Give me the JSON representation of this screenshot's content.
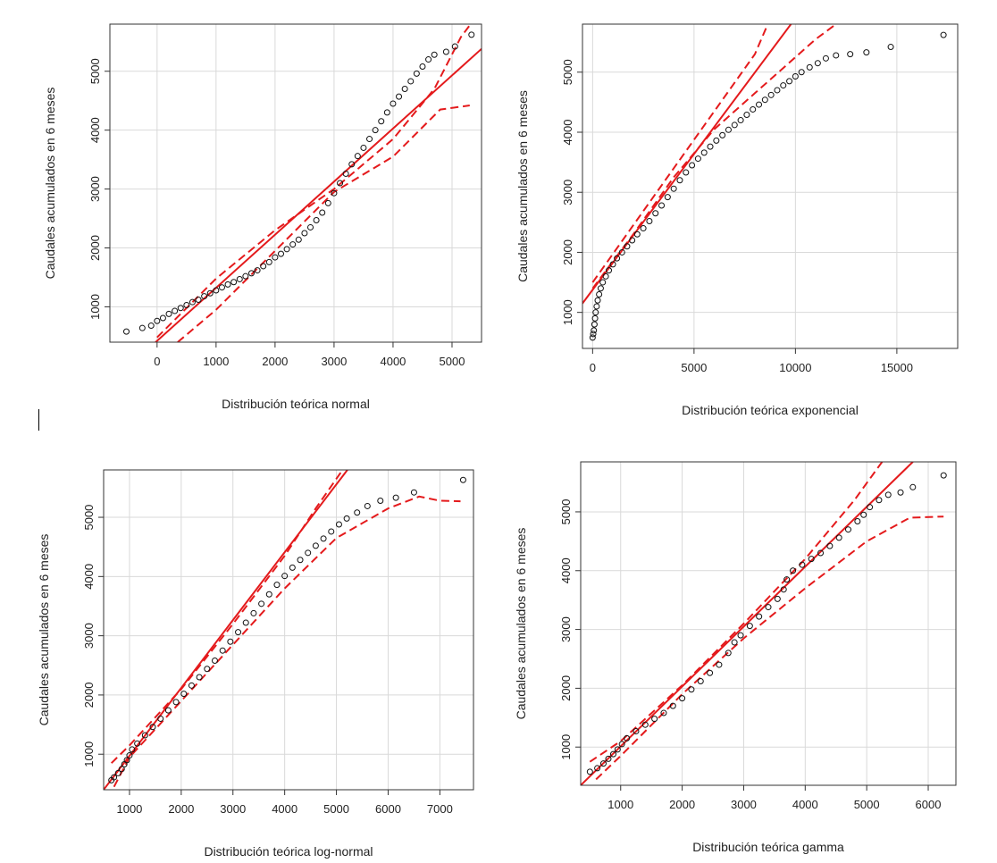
{
  "chart_data": [
    {
      "type": "scatter",
      "title": "",
      "xlabel": "Distribución teórica normal",
      "ylabel": "Caudales acumulados en 6 meses",
      "xlim": [
        -800,
        5500
      ],
      "ylim": [
        400,
        5800
      ],
      "xticks": [
        0,
        1000,
        2000,
        3000,
        4000,
        5000
      ],
      "yticks": [
        1000,
        2000,
        3000,
        4000,
        5000
      ],
      "grid": true,
      "reference_line": [
        [
          -800,
          -300
        ],
        [
          5500,
          5380
        ]
      ],
      "band_upper": [
        [
          0,
          480
        ],
        [
          1000,
          1480
        ],
        [
          2000,
          2300
        ],
        [
          3000,
          3000
        ],
        [
          4000,
          3850
        ],
        [
          4700,
          4700
        ],
        [
          5150,
          5580
        ],
        [
          5300,
          5780
        ]
      ],
      "band_lower": [
        [
          350,
          400
        ],
        [
          1000,
          950
        ],
        [
          2000,
          1950
        ],
        [
          3000,
          2950
        ],
        [
          4000,
          3550
        ],
        [
          4800,
          4350
        ],
        [
          5300,
          4420
        ]
      ],
      "points": [
        [
          -520,
          580
        ],
        [
          -250,
          640
        ],
        [
          -100,
          680
        ],
        [
          0,
          760
        ],
        [
          100,
          810
        ],
        [
          200,
          880
        ],
        [
          300,
          930
        ],
        [
          400,
          980
        ],
        [
          500,
          1030
        ],
        [
          600,
          1080
        ],
        [
          700,
          1120
        ],
        [
          800,
          1180
        ],
        [
          900,
          1230
        ],
        [
          1000,
          1280
        ],
        [
          1100,
          1330
        ],
        [
          1200,
          1380
        ],
        [
          1300,
          1420
        ],
        [
          1400,
          1470
        ],
        [
          1500,
          1520
        ],
        [
          1600,
          1570
        ],
        [
          1700,
          1620
        ],
        [
          1800,
          1690
        ],
        [
          1900,
          1760
        ],
        [
          2000,
          1840
        ],
        [
          2100,
          1900
        ],
        [
          2200,
          1980
        ],
        [
          2300,
          2060
        ],
        [
          2400,
          2140
        ],
        [
          2500,
          2250
        ],
        [
          2600,
          2350
        ],
        [
          2700,
          2470
        ],
        [
          2800,
          2600
        ],
        [
          2900,
          2760
        ],
        [
          3000,
          2930
        ],
        [
          3100,
          3100
        ],
        [
          3200,
          3260
        ],
        [
          3300,
          3420
        ],
        [
          3400,
          3560
        ],
        [
          3500,
          3700
        ],
        [
          3600,
          3850
        ],
        [
          3700,
          4000
        ],
        [
          3800,
          4150
        ],
        [
          3900,
          4300
        ],
        [
          4000,
          4450
        ],
        [
          4100,
          4570
        ],
        [
          4200,
          4700
        ],
        [
          4300,
          4830
        ],
        [
          4400,
          4960
        ],
        [
          4500,
          5080
        ],
        [
          4600,
          5200
        ],
        [
          4700,
          5280
        ],
        [
          4900,
          5330
        ],
        [
          5050,
          5420
        ],
        [
          5330,
          5620
        ]
      ]
    },
    {
      "type": "scatter",
      "title": "",
      "xlabel": "Distribución teórica exponencial",
      "ylabel": "Caudales acumulados en 6 meses",
      "xlim": [
        -500,
        18000
      ],
      "ylim": [
        400,
        5800
      ],
      "xticks": [
        0,
        5000,
        10000,
        15000
      ],
      "yticks": [
        1000,
        2000,
        3000,
        4000,
        5000
      ],
      "grid": true,
      "reference_line": [
        [
          -500,
          1150
        ],
        [
          10000,
          5900
        ]
      ],
      "band_upper": [
        [
          0,
          1500
        ],
        [
          2000,
          2450
        ],
        [
          4000,
          3400
        ],
        [
          6000,
          4350
        ],
        [
          8000,
          5300
        ],
        [
          8700,
          5850
        ]
      ],
      "band_lower": [
        [
          0,
          1400
        ],
        [
          2000,
          2300
        ],
        [
          4000,
          3250
        ],
        [
          6000,
          4050
        ],
        [
          8000,
          4650
        ],
        [
          10000,
          5250
        ],
        [
          11000,
          5550
        ],
        [
          12000,
          5800
        ]
      ],
      "points": [
        [
          0,
          580
        ],
        [
          30,
          640
        ],
        [
          60,
          700
        ],
        [
          90,
          800
        ],
        [
          120,
          900
        ],
        [
          150,
          1000
        ],
        [
          200,
          1100
        ],
        [
          250,
          1200
        ],
        [
          320,
          1300
        ],
        [
          400,
          1400
        ],
        [
          500,
          1500
        ],
        [
          650,
          1600
        ],
        [
          800,
          1700
        ],
        [
          1000,
          1800
        ],
        [
          1200,
          1900
        ],
        [
          1450,
          2000
        ],
        [
          1700,
          2100
        ],
        [
          1950,
          2200
        ],
        [
          2200,
          2300
        ],
        [
          2500,
          2400
        ],
        [
          2800,
          2520
        ],
        [
          3100,
          2650
        ],
        [
          3400,
          2780
        ],
        [
          3700,
          2920
        ],
        [
          4000,
          3060
        ],
        [
          4300,
          3200
        ],
        [
          4600,
          3330
        ],
        [
          4900,
          3450
        ],
        [
          5200,
          3560
        ],
        [
          5500,
          3660
        ],
        [
          5800,
          3760
        ],
        [
          6100,
          3860
        ],
        [
          6400,
          3950
        ],
        [
          6700,
          4040
        ],
        [
          7000,
          4120
        ],
        [
          7300,
          4200
        ],
        [
          7600,
          4290
        ],
        [
          7900,
          4380
        ],
        [
          8200,
          4460
        ],
        [
          8500,
          4540
        ],
        [
          8800,
          4620
        ],
        [
          9100,
          4700
        ],
        [
          9400,
          4780
        ],
        [
          9700,
          4850
        ],
        [
          10000,
          4930
        ],
        [
          10300,
          5000
        ],
        [
          10700,
          5080
        ],
        [
          11100,
          5150
        ],
        [
          11500,
          5230
        ],
        [
          12000,
          5280
        ],
        [
          12700,
          5300
        ],
        [
          13500,
          5330
        ],
        [
          14700,
          5420
        ],
        [
          17300,
          5620
        ]
      ]
    },
    {
      "type": "scatter",
      "title": "",
      "xlabel": "Distribución teórica log-normal",
      "ylabel": "Caudales acumulados en 6 meses",
      "xlim": [
        500,
        7650
      ],
      "ylim": [
        400,
        5800
      ],
      "xticks": [
        1000,
        2000,
        3000,
        4000,
        5000,
        6000,
        7000
      ],
      "yticks": [
        1000,
        2000,
        3000,
        4000,
        5000
      ],
      "grid": true,
      "reference_line": [
        [
          500,
          400
        ],
        [
          5300,
          5900
        ]
      ],
      "band_upper": [
        [
          650,
          850
        ],
        [
          1000,
          1150
        ],
        [
          2000,
          2100
        ],
        [
          3000,
          3200
        ],
        [
          4000,
          4350
        ],
        [
          4600,
          5150
        ],
        [
          5200,
          5900
        ]
      ],
      "band_lower": [
        [
          700,
          450
        ],
        [
          1000,
          950
        ],
        [
          2000,
          1900
        ],
        [
          3000,
          2850
        ],
        [
          4000,
          3800
        ],
        [
          5000,
          4650
        ],
        [
          6000,
          5150
        ],
        [
          6600,
          5350
        ],
        [
          7000,
          5280
        ],
        [
          7400,
          5270
        ]
      ],
      "points": [
        [
          650,
          560
        ],
        [
          700,
          610
        ],
        [
          780,
          680
        ],
        [
          850,
          750
        ],
        [
          900,
          830
        ],
        [
          950,
          900
        ],
        [
          1000,
          980
        ],
        [
          1050,
          1080
        ],
        [
          1150,
          1180
        ],
        [
          1300,
          1320
        ],
        [
          1450,
          1460
        ],
        [
          1600,
          1600
        ],
        [
          1750,
          1740
        ],
        [
          1900,
          1880
        ],
        [
          2050,
          2020
        ],
        [
          2200,
          2160
        ],
        [
          2350,
          2300
        ],
        [
          2500,
          2440
        ],
        [
          2650,
          2580
        ],
        [
          2800,
          2750
        ],
        [
          2950,
          2900
        ],
        [
          3100,
          3060
        ],
        [
          3250,
          3220
        ],
        [
          3400,
          3380
        ],
        [
          3550,
          3540
        ],
        [
          3700,
          3700
        ],
        [
          3850,
          3860
        ],
        [
          4000,
          4010
        ],
        [
          4150,
          4150
        ],
        [
          4300,
          4280
        ],
        [
          4450,
          4400
        ],
        [
          4600,
          4520
        ],
        [
          4750,
          4640
        ],
        [
          4900,
          4760
        ],
        [
          5050,
          4880
        ],
        [
          5200,
          4980
        ],
        [
          5400,
          5080
        ],
        [
          5600,
          5190
        ],
        [
          5850,
          5280
        ],
        [
          6150,
          5330
        ],
        [
          6500,
          5420
        ],
        [
          7450,
          5630
        ]
      ]
    },
    {
      "type": "scatter",
      "title": "",
      "xlabel": "Distribución teórica gamma",
      "ylabel": "Caudales acumulados en 6 meses",
      "xlim": [
        350,
        6450
      ],
      "ylim": [
        350,
        5850
      ],
      "xticks": [
        1000,
        2000,
        3000,
        4000,
        5000,
        6000
      ],
      "yticks": [
        1000,
        2000,
        3000,
        4000,
        5000
      ],
      "grid": true,
      "reference_line": [
        [
          350,
          350
        ],
        [
          5750,
          5850
        ]
      ],
      "band_upper": [
        [
          500,
          750
        ],
        [
          1000,
          1100
        ],
        [
          2000,
          2050
        ],
        [
          3000,
          3100
        ],
        [
          4000,
          4200
        ],
        [
          4800,
          5200
        ],
        [
          5250,
          5850
        ]
      ],
      "band_lower": [
        [
          600,
          450
        ],
        [
          1000,
          850
        ],
        [
          2000,
          1900
        ],
        [
          3000,
          2850
        ],
        [
          4000,
          3700
        ],
        [
          5000,
          4500
        ],
        [
          5700,
          4900
        ],
        [
          6250,
          4920
        ]
      ],
      "points": [
        [
          500,
          580
        ],
        [
          620,
          640
        ],
        [
          720,
          720
        ],
        [
          800,
          800
        ],
        [
          880,
          880
        ],
        [
          950,
          960
        ],
        [
          1020,
          1050
        ],
        [
          1100,
          1150
        ],
        [
          1250,
          1270
        ],
        [
          1400,
          1380
        ],
        [
          1550,
          1480
        ],
        [
          1700,
          1580
        ],
        [
          1850,
          1700
        ],
        [
          2000,
          1830
        ],
        [
          2150,
          1980
        ],
        [
          2300,
          2120
        ],
        [
          2450,
          2260
        ],
        [
          2600,
          2400
        ],
        [
          2750,
          2600
        ],
        [
          2850,
          2780
        ],
        [
          2950,
          2900
        ],
        [
          3100,
          3060
        ],
        [
          3250,
          3220
        ],
        [
          3400,
          3380
        ],
        [
          3550,
          3520
        ],
        [
          3650,
          3680
        ],
        [
          3700,
          3850
        ],
        [
          3800,
          4000
        ],
        [
          3950,
          4100
        ],
        [
          4100,
          4200
        ],
        [
          4250,
          4300
        ],
        [
          4400,
          4420
        ],
        [
          4550,
          4560
        ],
        [
          4700,
          4700
        ],
        [
          4850,
          4840
        ],
        [
          4950,
          4950
        ],
        [
          5050,
          5080
        ],
        [
          5200,
          5200
        ],
        [
          5350,
          5290
        ],
        [
          5550,
          5330
        ],
        [
          5750,
          5420
        ],
        [
          6250,
          5620
        ]
      ]
    }
  ]
}
